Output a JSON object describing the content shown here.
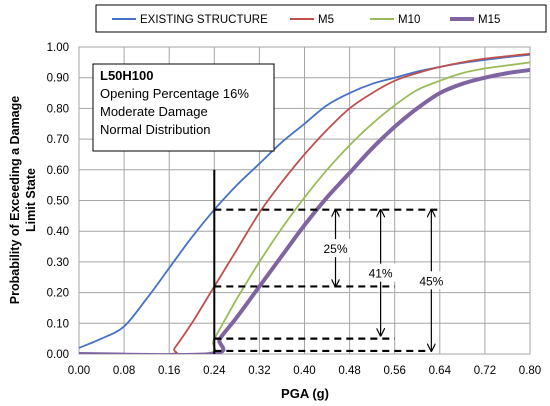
{
  "chart_data": {
    "type": "line",
    "title": "",
    "xlabel": "PGA (g)",
    "ylabel": "Probability of Exceeding a Damage Limit State",
    "ylabel_lines": [
      "Probability of Exceeding a Damage",
      "Limit State"
    ],
    "xlim": [
      0,
      0.8
    ],
    "ylim": [
      0,
      1
    ],
    "grid": true,
    "x_ticks": [
      "0.00",
      "0.08",
      "0.16",
      "0.24",
      "0.32",
      "0.40",
      "0.48",
      "0.56",
      "0.64",
      "0.72",
      "0.80"
    ],
    "y_ticks": [
      "0.00",
      "0.10",
      "0.20",
      "0.30",
      "0.40",
      "0.50",
      "0.60",
      "0.70",
      "0.80",
      "0.90",
      "1.00"
    ],
    "legend_position": "top",
    "series": [
      {
        "name": "EXISTING STRUCTURE",
        "color": "#4472c4",
        "x": [
          0,
          0.04,
          0.08,
          0.12,
          0.16,
          0.2,
          0.24,
          0.28,
          0.32,
          0.36,
          0.4,
          0.44,
          0.48,
          0.52,
          0.56,
          0.6,
          0.64,
          0.68,
          0.72,
          0.76,
          0.8
        ],
        "y": [
          0.02,
          0.05,
          0.09,
          0.18,
          0.28,
          0.38,
          0.47,
          0.55,
          0.62,
          0.69,
          0.75,
          0.81,
          0.85,
          0.88,
          0.9,
          0.92,
          0.935,
          0.948,
          0.958,
          0.967,
          0.975
        ]
      },
      {
        "name": "M5",
        "color": "#c0504d",
        "x": [
          0,
          0.16,
          0.17,
          0.2,
          0.24,
          0.28,
          0.32,
          0.36,
          0.4,
          0.44,
          0.48,
          0.52,
          0.56,
          0.6,
          0.64,
          0.68,
          0.72,
          0.76,
          0.8
        ],
        "y": [
          0,
          0,
          0.02,
          0.1,
          0.22,
          0.34,
          0.46,
          0.56,
          0.65,
          0.73,
          0.8,
          0.85,
          0.89,
          0.915,
          0.935,
          0.95,
          0.962,
          0.97,
          0.978
        ]
      },
      {
        "name": "M10",
        "color": "#9bbb59",
        "x": [
          0,
          0.22,
          0.24,
          0.28,
          0.32,
          0.36,
          0.4,
          0.44,
          0.48,
          0.52,
          0.56,
          0.6,
          0.64,
          0.68,
          0.72,
          0.76,
          0.8
        ],
        "y": [
          0,
          0,
          0.05,
          0.18,
          0.3,
          0.41,
          0.51,
          0.6,
          0.68,
          0.75,
          0.81,
          0.86,
          0.89,
          0.915,
          0.93,
          0.94,
          0.95
        ]
      },
      {
        "name": "M15",
        "color": "#8064a2",
        "x": [
          0,
          0.235,
          0.25,
          0.28,
          0.32,
          0.36,
          0.4,
          0.44,
          0.48,
          0.52,
          0.56,
          0.6,
          0.64,
          0.68,
          0.72,
          0.76,
          0.8
        ],
        "y": [
          0,
          0,
          0.05,
          0.12,
          0.22,
          0.32,
          0.42,
          0.51,
          0.59,
          0.67,
          0.74,
          0.8,
          0.85,
          0.88,
          0.9,
          0.915,
          0.925
        ]
      }
    ],
    "info_box": {
      "title": "L50H100",
      "lines": [
        "Opening Percentage 16%",
        "Moderate Damage",
        "Normal Distribution"
      ]
    },
    "annotations": {
      "vertical_line_x": 0.24,
      "dashed_levels": [
        {
          "y": 0.47,
          "x_start": 0.24,
          "x_end": 0.64
        },
        {
          "y": 0.22,
          "x_start": 0.24,
          "x_end": 0.56
        },
        {
          "y": 0.05,
          "x_start": 0.24,
          "x_end": 0.56
        },
        {
          "y": 0.01,
          "x_start": 0.24,
          "x_end": 0.62
        }
      ],
      "arrows": [
        {
          "label": "25%",
          "x": 0.455,
          "y_from": 0.47,
          "y_to": 0.22
        },
        {
          "label": "41%",
          "x": 0.535,
          "y_from": 0.47,
          "y_to": 0.06
        },
        {
          "label": "45%",
          "x": 0.625,
          "y_from": 0.47,
          "y_to": 0.01
        }
      ]
    }
  }
}
